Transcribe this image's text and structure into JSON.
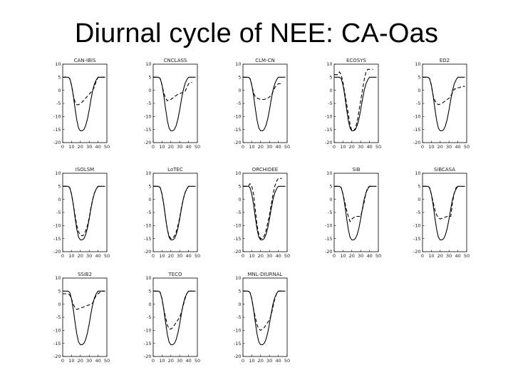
{
  "slide": {
    "title": "Diurnal cycle of NEE: CA-Oas"
  },
  "chart_data": {
    "type": "line",
    "xlim": [
      0,
      50
    ],
    "ylim": [
      -20,
      10
    ],
    "x_ticks": [
      0,
      10,
      20,
      30,
      40,
      50
    ],
    "y_ticks": [
      10,
      5,
      0,
      -5,
      -10,
      -15,
      -20
    ],
    "series_styles": {
      "observed": "solid",
      "model": "dashed"
    },
    "observed": {
      "x": [
        0,
        6,
        8,
        10,
        12,
        14,
        16,
        18,
        20,
        22,
        24,
        26,
        28,
        30,
        32,
        34,
        36,
        38,
        40,
        42,
        44,
        48
      ],
      "y": [
        5,
        5,
        4.5,
        2,
        -2,
        -7,
        -11.5,
        -14.5,
        -15.5,
        -15.5,
        -15,
        -13.5,
        -11,
        -7.5,
        -3.5,
        0,
        2.5,
        4,
        5,
        5,
        5,
        5
      ]
    },
    "panels": [
      {
        "title": "CAN-IBIS",
        "model": {
          "x": [
            0,
            6,
            8,
            10,
            12,
            14,
            16,
            18,
            22,
            26,
            30,
            34,
            36,
            38,
            40,
            42,
            48
          ],
          "y": [
            5,
            5,
            4.5,
            2,
            -2,
            -4.5,
            -5.5,
            -5.5,
            -4.5,
            -3,
            -1.5,
            0,
            1.5,
            3.5,
            5,
            5,
            5
          ]
        }
      },
      {
        "title": "CNCLASS",
        "model": {
          "x": [
            0,
            6,
            8,
            10,
            12,
            14,
            16,
            20,
            24,
            28,
            32,
            36,
            38,
            40,
            42,
            44
          ],
          "y": [
            5,
            5,
            4.5,
            2,
            -1,
            -3,
            -4,
            -3.5,
            -2.5,
            -1.5,
            -1,
            -0.5,
            1,
            2.5,
            3,
            3
          ]
        }
      },
      {
        "title": "CLM-CN",
        "model": {
          "x": [
            0,
            6,
            8,
            10,
            12,
            14,
            16,
            20,
            24,
            28,
            32,
            34,
            36,
            38,
            40,
            42,
            44
          ],
          "y": [
            5,
            5,
            4.5,
            2,
            -1,
            -2.5,
            -3,
            -3.5,
            -3.5,
            -3,
            -2,
            -0.5,
            1,
            2,
            2.5,
            2.5,
            2.5
          ]
        }
      },
      {
        "title": "ECOSYS",
        "model": {
          "x": [
            0,
            4,
            6,
            8,
            10,
            12,
            14,
            16,
            18,
            20,
            22,
            24,
            26,
            28,
            30,
            32,
            34,
            36,
            38,
            40,
            44
          ],
          "y": [
            6,
            6,
            7,
            6,
            3,
            -1,
            -5,
            -9,
            -13,
            -15.5,
            -15.5,
            -14.5,
            -12,
            -8,
            -4,
            0,
            4,
            7,
            8,
            8,
            8
          ]
        }
      },
      {
        "title": "ED2",
        "model": {
          "x": [
            0,
            6,
            8,
            10,
            12,
            14,
            16,
            18,
            22,
            26,
            30,
            34,
            36,
            38,
            40,
            42,
            44,
            48
          ],
          "y": [
            5,
            5,
            4.5,
            2,
            -2,
            -4,
            -5,
            -5.5,
            -5,
            -4,
            -3,
            -1,
            0.5,
            0.5,
            1,
            1,
            1.5,
            1.5
          ]
        }
      },
      {
        "title": "ISOLSM",
        "model": {
          "x": [
            0,
            6,
            8,
            10,
            12,
            14,
            16,
            18,
            20,
            22,
            24,
            26,
            28,
            30,
            32,
            34,
            36,
            38,
            40,
            42,
            44
          ],
          "y": [
            5,
            5,
            4.5,
            2,
            -2,
            -6,
            -10,
            -12.5,
            -13.5,
            -14,
            -13.5,
            -12,
            -10,
            -7,
            -3,
            0,
            2.5,
            4,
            5,
            5,
            5
          ]
        }
      },
      {
        "title": "LoTEC",
        "model": {
          "x": [
            0,
            6,
            8,
            10,
            12,
            14,
            16,
            18,
            20,
            22,
            24,
            26,
            28,
            30,
            32,
            34,
            36,
            38,
            40,
            42,
            44
          ],
          "y": [
            5,
            5,
            4.5,
            2,
            -2,
            -7,
            -11.5,
            -14,
            -15,
            -15,
            -14,
            -12.5,
            -10,
            -7,
            -3,
            0,
            2.5,
            4,
            5,
            5,
            5
          ]
        }
      },
      {
        "title": "ORCHIDEE",
        "model": {
          "x": [
            0,
            6,
            8,
            10,
            12,
            14,
            16,
            18,
            20,
            22,
            24,
            26,
            28,
            30,
            32,
            34,
            36,
            38,
            40,
            44
          ],
          "y": [
            5,
            5,
            6,
            5,
            2,
            -4,
            -10,
            -13.5,
            -15,
            -15,
            -14,
            -12,
            -9,
            -6,
            -2,
            2,
            5,
            7,
            8,
            8
          ]
        }
      },
      {
        "title": "SiB",
        "model": {
          "x": [
            0,
            6,
            8,
            10,
            12,
            14,
            16,
            18,
            20,
            24,
            30,
            34,
            36,
            38,
            40,
            42,
            44
          ],
          "y": [
            5,
            5,
            4.5,
            2,
            -1,
            -4,
            -6.5,
            -8.5,
            -7.5,
            -6.5,
            -6.5,
            -1,
            2.5,
            4.5,
            5,
            5,
            5
          ]
        }
      },
      {
        "title": "SiBCASA",
        "model": {
          "x": [
            0,
            6,
            8,
            10,
            12,
            14,
            16,
            18,
            20,
            24,
            28,
            30,
            32,
            34,
            36,
            38,
            40,
            42
          ],
          "y": [
            5,
            5,
            4.5,
            2,
            -1,
            -4,
            -6,
            -7,
            -7.5,
            -7,
            -6.5,
            -6.5,
            -6.5,
            -1,
            2.5,
            4.5,
            5,
            5
          ]
        }
      },
      {
        "title": "SSiB2",
        "model": {
          "x": [
            0,
            6,
            8,
            10,
            12,
            14,
            16,
            20,
            24,
            28,
            32,
            34,
            36,
            38,
            40,
            42,
            44,
            48
          ],
          "y": [
            4,
            4,
            3.5,
            2,
            0,
            -1.5,
            -2,
            -1.5,
            -1,
            -0.5,
            0,
            0.5,
            2,
            3.5,
            4,
            4.5,
            5,
            5
          ]
        }
      },
      {
        "title": "TECO",
        "model": {
          "x": [
            0,
            6,
            8,
            10,
            12,
            14,
            16,
            18,
            20,
            22,
            24,
            26,
            28,
            30,
            32,
            34,
            36,
            38,
            40,
            42,
            44
          ],
          "y": [
            5,
            5,
            4.5,
            2,
            -2,
            -5,
            -8,
            -9.5,
            -9.5,
            -9,
            -8,
            -7,
            -6,
            -5,
            -3,
            -0.5,
            2,
            4,
            5,
            5,
            5
          ]
        }
      },
      {
        "title": "MNL-DIURNAL",
        "model": {
          "x": [
            0,
            6,
            8,
            10,
            12,
            14,
            16,
            18,
            20,
            22,
            24,
            26,
            28,
            30,
            32,
            34,
            36,
            38,
            40,
            42,
            44
          ],
          "y": [
            5,
            5,
            4.5,
            2,
            -2,
            -5,
            -8,
            -9.5,
            -10,
            -9.5,
            -9,
            -8,
            -7,
            -6,
            -4,
            -1,
            2,
            4,
            5,
            5,
            5
          ]
        }
      }
    ]
  }
}
